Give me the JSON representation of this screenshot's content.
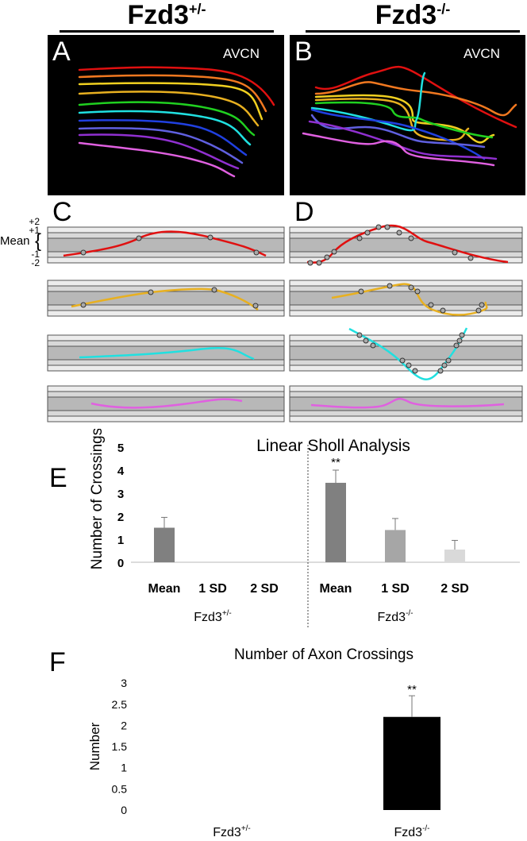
{
  "headers": {
    "left": "Fzd3",
    "left_sup": "+/-",
    "right": "Fzd3",
    "right_sup": "-/-"
  },
  "panels": {
    "A": "A",
    "B": "B",
    "C": "C",
    "D": "D",
    "E": "E",
    "F": "F",
    "region_label": "AVCN"
  },
  "scale_labels": {
    "plus2": "+2",
    "plus1": "+1",
    "mean": "Mean",
    "minus1": "-1",
    "minus2": "-2"
  },
  "trace_colors": [
    "#e01010",
    "#f07820",
    "#f0d020",
    "#e8b020",
    "#20d020",
    "#20e0e0",
    "#2040e0",
    "#6060e0",
    "#9030d0",
    "#e060e0"
  ],
  "chart_data": [
    {
      "type": "bar",
      "title": "Linear Sholl Analysis",
      "ylabel": "Number of Crossings",
      "xlabel": "",
      "ylim": [
        0,
        5
      ],
      "yticks": [
        0,
        1,
        2,
        3,
        4,
        5
      ],
      "grid": false,
      "categories": [
        "Mean",
        "1 SD",
        "2 SD",
        "Mean",
        "1 SD",
        "2 SD"
      ],
      "groups": [
        {
          "name": "Fzd3",
          "sup": "+/-"
        },
        {
          "name": "Fzd3",
          "sup": "-/-"
        }
      ],
      "values": [
        1.5,
        0,
        0,
        3.45,
        1.4,
        0.55
      ],
      "error_upper": [
        1.95,
        0,
        0,
        4.0,
        1.9,
        0.95
      ],
      "bar_colors": [
        "#808080",
        "#808080",
        "#808080",
        "#808080",
        "#a6a6a6",
        "#d9d9d9"
      ],
      "annotations": [
        {
          "category_index": 3,
          "text": "**"
        }
      ]
    },
    {
      "type": "bar",
      "title": "Number of Axon Crossings",
      "ylabel": "Number",
      "xlabel": "",
      "ylim": [
        0,
        3
      ],
      "yticks": [
        "0",
        "0.5",
        "1",
        "1.5",
        "2",
        "2.5",
        "3"
      ],
      "grid": false,
      "categories": [
        {
          "name": "Fzd3",
          "sup": "+/-"
        },
        {
          "name": "Fzd3",
          "sup": "-/-"
        }
      ],
      "values": [
        0,
        2.2
      ],
      "error_upper": [
        0,
        2.7
      ],
      "bar_colors": [
        "#000000",
        "#000000"
      ],
      "annotations": [
        {
          "category_index": 1,
          "text": "**"
        }
      ]
    }
  ]
}
